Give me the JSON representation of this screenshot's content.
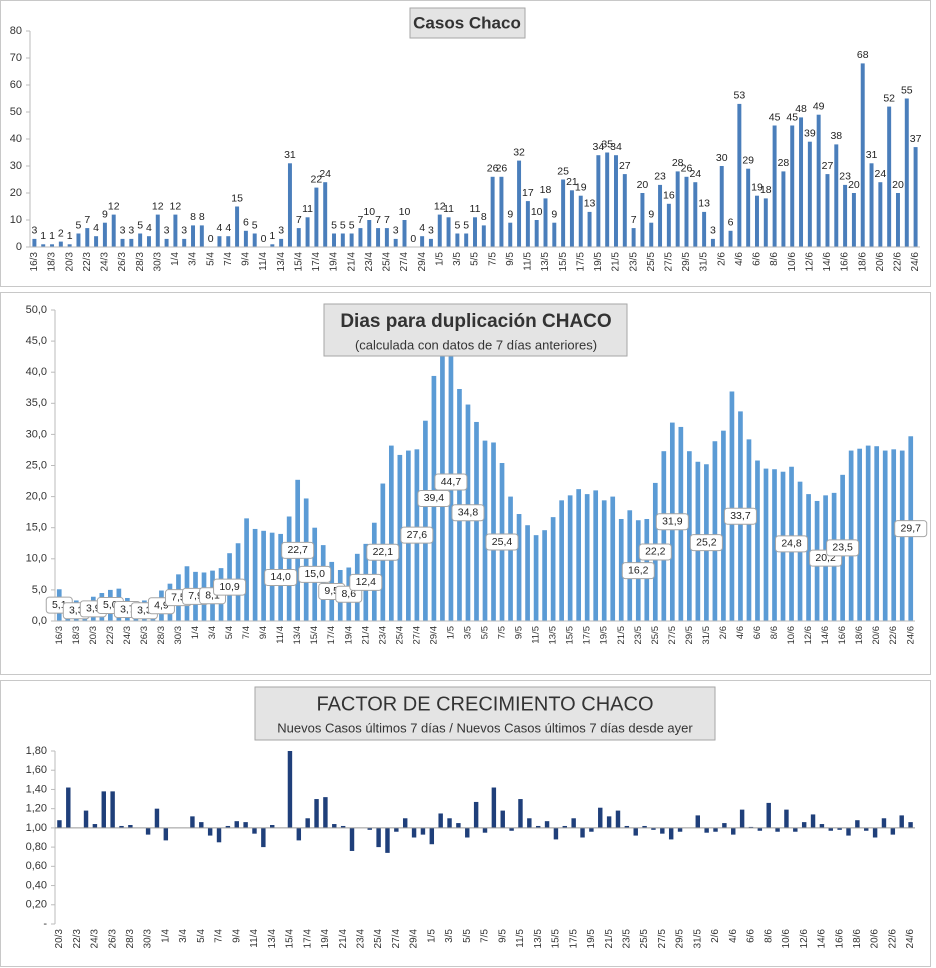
{
  "chart_data": [
    {
      "type": "bar",
      "title": "Casos  Chaco",
      "color": "#4a7ebb",
      "data_labels": true,
      "categories": [
        "16/3",
        null,
        "18/3",
        null,
        "20/3",
        null,
        "22/3",
        null,
        "24/3",
        null,
        "26/3",
        null,
        "28/3",
        null,
        "30/3",
        null,
        "1/4",
        null,
        "3/4",
        null,
        "5/4",
        null,
        "7/4",
        null,
        "9/4",
        null,
        "11/4",
        null,
        "13/4",
        null,
        "15/4",
        null,
        "17/4",
        null,
        "19/4",
        null,
        "21/4",
        null,
        "23/4",
        null,
        "25/4",
        null,
        "27/4",
        null,
        "29/4",
        null,
        "1/5",
        null,
        "3/5",
        null,
        "5/5",
        null,
        "7/5",
        null,
        "9/5",
        null,
        "11/5",
        null,
        "13/5",
        null,
        "15/5",
        null,
        "17/5",
        null,
        "19/5",
        null,
        "21/5",
        null,
        "23/5",
        null,
        "25/5",
        null,
        "27/5",
        null,
        "29/5",
        null,
        "31/5",
        null,
        "2/6",
        null,
        "4/6",
        null,
        "6/6",
        null,
        "8/6",
        null,
        "10/6",
        null,
        "12/6",
        null,
        "14/6",
        null,
        "16/6",
        null,
        "18/6",
        null,
        "20/6",
        null,
        "22/6",
        null,
        "24/6"
      ],
      "values": [
        3,
        1,
        1,
        2,
        1,
        5,
        7,
        4,
        9,
        12,
        3,
        3,
        5,
        4,
        12,
        3,
        12,
        3,
        8,
        8,
        0,
        4,
        4,
        15,
        6,
        5,
        0,
        1,
        3,
        31,
        7,
        11,
        22,
        24,
        5,
        5,
        5,
        7,
        10,
        7,
        7,
        3,
        10,
        0,
        4,
        3,
        12,
        11,
        5,
        5,
        11,
        8,
        26,
        26,
        9,
        32,
        17,
        10,
        18,
        9,
        25,
        21,
        19,
        13,
        34,
        35,
        34,
        27,
        7,
        20,
        9,
        23,
        16,
        28,
        26,
        24,
        13,
        3,
        30,
        6,
        53,
        29,
        19,
        18,
        45,
        28,
        45,
        48,
        39,
        49,
        27,
        38,
        23,
        20,
        68,
        31,
        24,
        52,
        20,
        55,
        37
      ],
      "ylim": [
        0,
        80
      ],
      "yticks": [
        0,
        10,
        20,
        30,
        40,
        50,
        60,
        70,
        80
      ]
    },
    {
      "type": "bar",
      "title": "Dias para duplicación CHACO",
      "subtitle": "(calculada con datos de 7 días anteriores)",
      "color": "#5b9bd5",
      "categories": [
        "16/3",
        null,
        "18/3",
        null,
        "20/3",
        null,
        "22/3",
        null,
        "24/3",
        null,
        "26/3",
        null,
        "28/3",
        null,
        "30/3",
        null,
        "1/4",
        null,
        "3/4",
        null,
        "5/4",
        null,
        "7/4",
        null,
        "9/4",
        null,
        "11/4",
        null,
        "13/4",
        null,
        "15/4",
        null,
        "17/4",
        null,
        "19/4",
        null,
        "21/4",
        null,
        "23/4",
        null,
        "25/4",
        null,
        "27/4",
        null,
        "29/4",
        null,
        "1/5",
        null,
        "3/5",
        null,
        "5/5",
        null,
        "7/5",
        null,
        "9/5",
        null,
        "11/5",
        null,
        "13/5",
        null,
        "15/5",
        null,
        "17/5",
        null,
        "19/5",
        null,
        "21/5",
        null,
        "23/5",
        null,
        "25/5",
        null,
        "27/5",
        null,
        "29/5",
        null,
        "31/5",
        null,
        "2/6",
        null,
        "4/6",
        null,
        "6/6",
        null,
        "8/6",
        null,
        "10/6",
        null,
        "12/6",
        null,
        "14/6",
        null,
        "16/6",
        null,
        "18/6",
        null,
        "20/6",
        null,
        "22/6",
        null,
        "24/6"
      ],
      "values": [
        5.1,
        3.0,
        3.3,
        2.5,
        3.9,
        4.5,
        5.0,
        5.2,
        3.7,
        3.0,
        3.3,
        3.0,
        4.9,
        6.0,
        7.5,
        8.8,
        7.9,
        7.8,
        8.1,
        8.5,
        10.9,
        12.5,
        16.5,
        14.8,
        14.5,
        14.2,
        14.0,
        16.8,
        22.7,
        19.7,
        15.0,
        12.2,
        9.5,
        8.2,
        8.6,
        10.8,
        12.4,
        15.8,
        22.1,
        28.2,
        26.7,
        27.4,
        27.6,
        32.2,
        39.4,
        43.0,
        44.7,
        37.3,
        34.8,
        32.0,
        29.0,
        28.7,
        25.4,
        20.0,
        17.2,
        15.4,
        13.8,
        14.6,
        16.7,
        19.4,
        20.2,
        21.2,
        20.4,
        21.0,
        19.4,
        20.0,
        16.4,
        17.8,
        16.2,
        16.4,
        22.2,
        27.3,
        31.9,
        31.2,
        27.3,
        25.6,
        25.2,
        28.9,
        30.6,
        36.9,
        33.7,
        29.2,
        25.8,
        24.5,
        24.4,
        24.0,
        24.8,
        22.4,
        20.4,
        19.3,
        20.2,
        20.6,
        23.5,
        27.4,
        27.7,
        28.2,
        28.1,
        27.4,
        27.6,
        27.4,
        29.7
      ],
      "value_labels": [
        "5,1",
        null,
        "3,3",
        null,
        "3,9",
        null,
        "5,0",
        null,
        "3,7",
        null,
        "3,3",
        null,
        "4,9",
        null,
        "7,5",
        null,
        "7,9",
        null,
        "8,1",
        null,
        "10,9",
        null,
        null,
        null,
        null,
        null,
        "14,0",
        null,
        "22,7",
        null,
        "15,0",
        null,
        "9,5",
        null,
        "8,6",
        null,
        "12,4",
        null,
        "22,1",
        null,
        null,
        null,
        "27,6",
        null,
        "39,4",
        null,
        "44,7",
        null,
        "34,8",
        null,
        null,
        null,
        "25,4",
        null,
        null,
        null,
        null,
        null,
        null,
        null,
        null,
        null,
        null,
        null,
        null,
        null,
        null,
        null,
        "16,2",
        null,
        "22,2",
        null,
        "31,9",
        null,
        null,
        null,
        "25,2",
        null,
        null,
        null,
        "33,7",
        null,
        null,
        null,
        null,
        null,
        "24,8",
        null,
        null,
        null,
        "20,2",
        null,
        "23,5",
        null,
        null,
        null,
        null,
        null,
        null,
        null,
        "29,7"
      ],
      "ylim": [
        0,
        50
      ],
      "yticks": [
        {
          "value": 0,
          "label": "0,0"
        },
        {
          "value": 5,
          "label": "5,0"
        },
        {
          "value": 10,
          "label": "10,0"
        },
        {
          "value": 15,
          "label": "15,0"
        },
        {
          "value": 20,
          "label": "20,0"
        },
        {
          "value": 25,
          "label": "25,0"
        },
        {
          "value": 30,
          "label": "30,0"
        },
        {
          "value": 35,
          "label": "35,0"
        },
        {
          "value": 40,
          "label": "40,0"
        },
        {
          "value": 45,
          "label": "45,0"
        },
        {
          "value": 50,
          "label": "50,0"
        }
      ]
    },
    {
      "type": "bar",
      "title": "FACTOR DE CRECIMIENTO CHACO",
      "subtitle": "Nuevos Casos últimos 7 días / Nuevos Casos últimos 7 días desde ayer",
      "color": "#1f3f7a",
      "baseline": 1,
      "categories": [
        "20/3",
        null,
        "22/3",
        null,
        "24/3",
        null,
        "26/3",
        null,
        "28/3",
        null,
        "30/3",
        null,
        "1/4",
        null,
        "3/4",
        null,
        "5/4",
        null,
        "7/4",
        null,
        "9/4",
        null,
        "11/4",
        null,
        "13/4",
        null,
        "15/4",
        null,
        "17/4",
        null,
        "19/4",
        null,
        "21/4",
        null,
        "23/4",
        null,
        "25/4",
        null,
        "27/4",
        null,
        "29/4",
        null,
        "1/5",
        null,
        "3/5",
        null,
        "5/5",
        null,
        "7/5",
        null,
        "9/5",
        null,
        "11/5",
        null,
        "13/5",
        null,
        "15/5",
        null,
        "17/5",
        null,
        "19/5",
        null,
        "21/5",
        null,
        "23/5",
        null,
        "25/5",
        null,
        "27/5",
        null,
        "29/5",
        null,
        "31/5",
        null,
        "2/6",
        null,
        "4/6",
        null,
        "6/6",
        null,
        "8/6",
        null,
        "10/6",
        null,
        "12/6",
        null,
        "14/6",
        null,
        "16/6",
        null,
        "18/6",
        null,
        "20/6",
        null,
        "22/6",
        null,
        "24/6"
      ],
      "values": [
        1.08,
        1.42,
        1.0,
        1.18,
        1.04,
        1.38,
        1.38,
        1.02,
        1.03,
        1.0,
        0.93,
        1.2,
        0.87,
        1.0,
        1.0,
        1.12,
        1.06,
        0.92,
        0.85,
        1.02,
        1.07,
        1.06,
        0.94,
        0.8,
        1.03,
        1.0,
        1.8,
        0.87,
        1.1,
        1.3,
        1.32,
        1.04,
        1.02,
        0.76,
        1.0,
        0.98,
        0.8,
        0.74,
        0.96,
        1.1,
        0.9,
        0.93,
        0.83,
        1.15,
        1.1,
        1.05,
        0.9,
        1.27,
        0.95,
        1.42,
        1.18,
        0.97,
        1.3,
        1.1,
        1.02,
        1.07,
        0.88,
        1.02,
        1.1,
        0.9,
        0.96,
        1.21,
        1.12,
        1.18,
        1.02,
        0.92,
        1.02,
        0.98,
        0.94,
        0.88,
        0.96,
        1.0,
        1.13,
        0.95,
        0.96,
        1.05,
        0.93,
        1.19,
        1.01,
        0.97,
        1.26,
        0.96,
        1.19,
        0.96,
        1.06,
        1.14,
        1.04,
        0.97,
        0.98,
        0.92,
        1.08,
        0.97,
        0.9,
        1.1,
        0.93,
        1.13,
        1.06
      ],
      "ylim": [
        0,
        1.8
      ],
      "yticks": [
        {
          "value": 0,
          "label": "-"
        },
        {
          "value": 0.2,
          "label": "0,20"
        },
        {
          "value": 0.4,
          "label": "0,40"
        },
        {
          "value": 0.6,
          "label": "0,60"
        },
        {
          "value": 0.8,
          "label": "0,80"
        },
        {
          "value": 1.0,
          "label": "1,00"
        },
        {
          "value": 1.2,
          "label": "1,20"
        },
        {
          "value": 1.4,
          "label": "1,40"
        },
        {
          "value": 1.6,
          "label": "1,60"
        },
        {
          "value": 1.8,
          "label": "1,80"
        }
      ]
    }
  ]
}
